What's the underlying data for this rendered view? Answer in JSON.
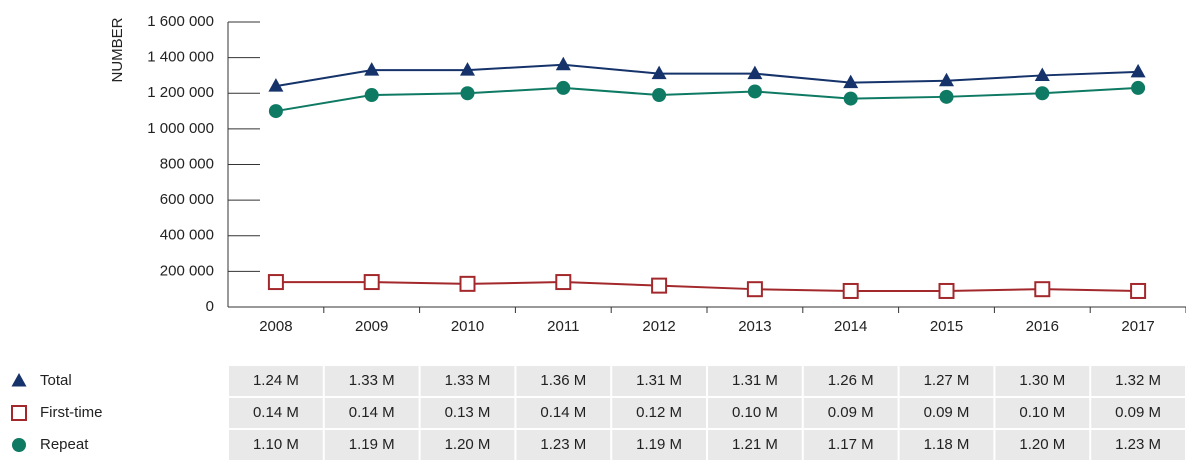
{
  "chart_data": {
    "type": "line",
    "ylabel": "NUMBER",
    "categories": [
      "2008",
      "2009",
      "2010",
      "2011",
      "2012",
      "2013",
      "2014",
      "2015",
      "2016",
      "2017"
    ],
    "series": [
      {
        "name": "Total",
        "color": "#15336a",
        "marker": "triangle",
        "values": [
          1240000,
          1330000,
          1330000,
          1360000,
          1310000,
          1310000,
          1260000,
          1270000,
          1300000,
          1320000
        ],
        "value_labels": [
          "1.24 M",
          "1.33 M",
          "1.33 M",
          "1.36 M",
          "1.31 M",
          "1.31 M",
          "1.26 M",
          "1.27 M",
          "1.30 M",
          "1.32 M"
        ]
      },
      {
        "name": "First-time",
        "color": "#a3282c",
        "marker": "square",
        "values": [
          140000,
          140000,
          130000,
          140000,
          120000,
          100000,
          90000,
          90000,
          100000,
          90000
        ],
        "value_labels": [
          "0.14 M",
          "0.14 M",
          "0.13 M",
          "0.14 M",
          "0.12 M",
          "0.10 M",
          "0.09 M",
          "0.09 M",
          "0.10 M",
          "0.09 M"
        ]
      },
      {
        "name": "Repeat",
        "color": "#0e7a63",
        "marker": "circle",
        "values": [
          1100000,
          1190000,
          1200000,
          1230000,
          1190000,
          1210000,
          1170000,
          1180000,
          1200000,
          1230000
        ],
        "value_labels": [
          "1.10 M",
          "1.19 M",
          "1.20 M",
          "1.23 M",
          "1.19 M",
          "1.21 M",
          "1.17 M",
          "1.18 M",
          "1.20 M",
          "1.23 M"
        ]
      }
    ],
    "ylim": [
      0,
      1600000
    ],
    "yticks": [
      0,
      {
        "value": 200000,
        "label": "200 000"
      },
      {
        "value": 400000,
        "label": "400 000"
      },
      {
        "value": 600000,
        "label": "600 000"
      },
      {
        "value": 800000,
        "label": "800 000"
      },
      {
        "value": 1000000,
        "label": "1 000 000"
      },
      {
        "value": 1200000,
        "label": "1 200 000"
      },
      {
        "value": 1400000,
        "label": "1 400 000"
      },
      {
        "value": 1600000,
        "label": "1 600 000"
      }
    ]
  }
}
